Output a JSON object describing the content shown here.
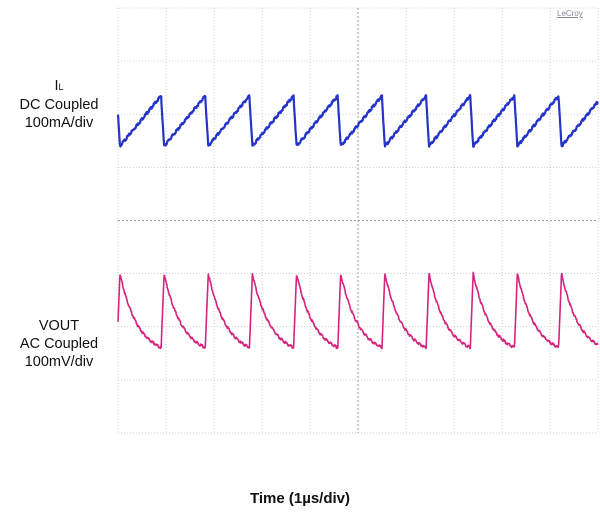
{
  "brand": "LeCroy",
  "chart_data": {
    "type": "line",
    "title": "",
    "xlabel": "Time (1µs/div)",
    "x_units": "divisions",
    "xlim": [
      0,
      10
    ],
    "ylim": [
      0,
      8
    ],
    "grid": true,
    "period_div": 0.92,
    "series": [
      {
        "name": "I_L",
        "label_lines": [
          "I",
          "DC Coupled",
          "100mA/div"
        ],
        "label_subscript": "L",
        "color": "#2433c8",
        "waveform": "sawtooth-rising",
        "peak_div": 6.35,
        "trough_div": 5.4
      },
      {
        "name": "VOUT",
        "label_lines": [
          "VOUT",
          "AC Coupled",
          "100mV/div"
        ],
        "color": "#d6247e",
        "waveform": "sawtooth-decaying",
        "peak_div": 3.0,
        "trough_div": 1.45
      }
    ]
  }
}
